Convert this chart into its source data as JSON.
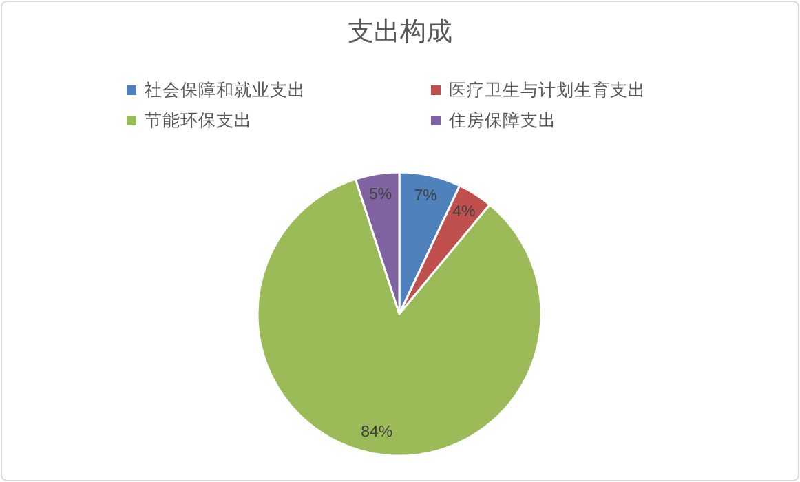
{
  "chart_data": {
    "type": "pie",
    "title": "支出构成",
    "legend": "top",
    "value_labels": [
      "7%",
      "4%",
      "84%",
      "5%"
    ],
    "categories": [
      "社会保障和就业支出",
      "医疗卫生与计划生育支出",
      "节能环保支出",
      "住房保障支出"
    ],
    "values": [
      7,
      4,
      84,
      5
    ],
    "colors": [
      "#4f81bd",
      "#c0504d",
      "#9bbb59",
      "#8064a2"
    ]
  }
}
